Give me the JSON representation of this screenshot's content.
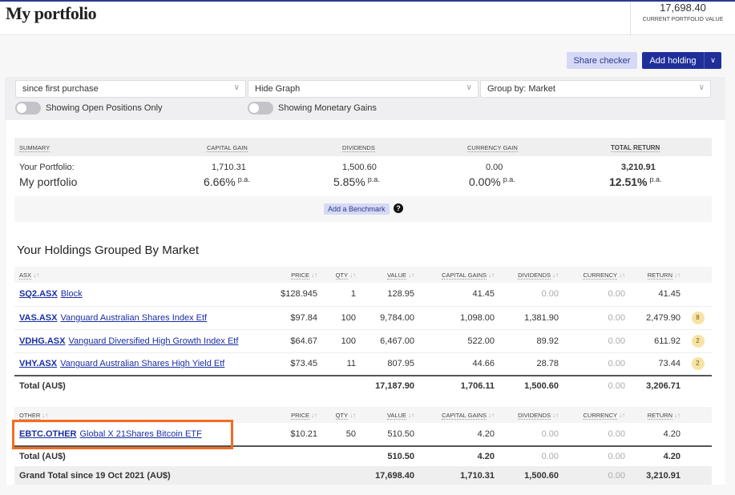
{
  "header": {
    "title": "My portfolio",
    "portfolio_value": "17,698.40",
    "portfolio_value_label": "CURRENT PORTFOLIO VALUE"
  },
  "actions": {
    "share_checker": "Share checker",
    "add_holding": "Add holding",
    "dropdown_icon": "chevron-down-icon"
  },
  "filters": {
    "period": "since first purchase",
    "graph": "Hide Graph",
    "group": "Group by: Market",
    "toggle_open": "Showing Open Positions Only",
    "toggle_gains": "Showing Monetary Gains"
  },
  "summary": {
    "headers": [
      "SUMMARY",
      "CAPITAL GAIN",
      "DIVIDENDS",
      "CURRENCY GAIN",
      "TOTAL RETURN"
    ],
    "label_top": "Your Portfolio:",
    "label_main": "My portfolio",
    "values": [
      "1,710.31",
      "1,500.60",
      "0.00",
      "3,210.91"
    ],
    "percents": [
      "6.66%",
      "5.85%",
      "0.00%",
      "12.51%"
    ],
    "pa": "p.a.",
    "benchmark": "Add a Benchmark",
    "help": "?"
  },
  "groups_title": "Your Holdings Grouped By Market",
  "columns": [
    "PRICE",
    "QTY",
    "VALUE",
    "CAPITAL GAINS",
    "DIVIDENDS",
    "CURRENCY",
    "RETURN"
  ],
  "groups": [
    {
      "name": "ASX",
      "rows": [
        {
          "code": "SQ2.ASX",
          "name": "Block",
          "price": "$128.945",
          "qty": "1",
          "value": "128.95",
          "cap": "41.45",
          "div": "0.00",
          "cur": "0.00",
          "ret": "41.45",
          "badge": ""
        },
        {
          "code": "VAS.ASX",
          "name": "Vanguard Australian Shares Index Etf",
          "price": "$97.84",
          "qty": "100",
          "value": "9,784.00",
          "cap": "1,098.00",
          "div": "1,381.90",
          "cur": "0.00",
          "ret": "2,479.90",
          "badge": "8"
        },
        {
          "code": "VDHG.ASX",
          "name": "Vanguard Diversified High Growth Index Etf",
          "price": "$64.67",
          "qty": "100",
          "value": "6,467.00",
          "cap": "522.00",
          "div": "89.92",
          "cur": "0.00",
          "ret": "611.92",
          "badge": "2"
        },
        {
          "code": "VHY.ASX",
          "name": "Vanguard Australian Shares High Yield Etf",
          "price": "$73.45",
          "qty": "11",
          "value": "807.95",
          "cap": "44.66",
          "div": "28.78",
          "cur": "0.00",
          "ret": "73.44",
          "badge": "2"
        }
      ],
      "total": {
        "label": "Total (AU$)",
        "value": "17,187.90",
        "cap": "1,706.11",
        "div": "1,500.60",
        "cur": "0.00",
        "ret": "3,206.71"
      }
    },
    {
      "name": "OTHER",
      "rows": [
        {
          "code": "EBTC.OTHER",
          "name": "Global X 21Shares Bitcoin ETF",
          "price": "$10.21",
          "qty": "50",
          "value": "510.50",
          "cap": "4.20",
          "div": "0.00",
          "cur": "0.00",
          "ret": "4.20",
          "badge": ""
        }
      ],
      "total": {
        "label": "Total (AU$)",
        "value": "510.50",
        "cap": "4.20",
        "div": "0.00",
        "cur": "0.00",
        "ret": "4.20"
      },
      "grand": {
        "label": "Grand Total since 19 Oct 2021 (AU$)",
        "value": "17,698.40",
        "cap": "1,710.31",
        "div": "1,500.60",
        "cur": "0.00",
        "ret": "3,210.91"
      }
    }
  ]
}
